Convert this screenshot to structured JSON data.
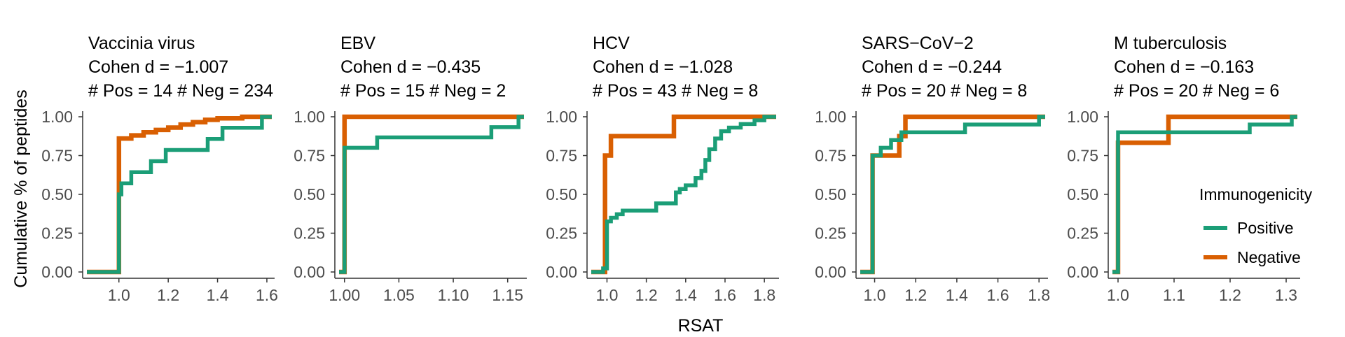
{
  "chart_data": [
    {
      "type": "line",
      "title": "Vaccinia virus",
      "subtitle": [
        "Cohen d = −1.007",
        "# Pos = 14 # Neg = 234"
      ],
      "xlim": [
        0.87,
        1.62
      ],
      "xticks": [
        1.0,
        1.2,
        1.4,
        1.6
      ],
      "xtick_labels": [
        "1.0",
        "1.2",
        "1.4",
        "1.6"
      ],
      "ylim": [
        0,
        1
      ],
      "series": [
        {
          "name": "Positive",
          "x": [
            0.87,
            1.0,
            1.0,
            1.01,
            1.05,
            1.11,
            1.13,
            1.19,
            1.21,
            1.27,
            1.36,
            1.42,
            1.5,
            1.58,
            1.62
          ],
          "y": [
            0.0,
            0.0,
            0.5,
            0.571,
            0.643,
            0.643,
            0.714,
            0.786,
            0.786,
            0.786,
            0.857,
            0.929,
            0.929,
            1.0,
            1.0
          ]
        },
        {
          "name": "Negative",
          "x": [
            0.87,
            1.0,
            1.0,
            1.05,
            1.1,
            1.15,
            1.2,
            1.25,
            1.3,
            1.35,
            1.4,
            1.5,
            1.62
          ],
          "y": [
            0.0,
            0.0,
            0.86,
            0.88,
            0.9,
            0.915,
            0.93,
            0.95,
            0.965,
            0.98,
            0.99,
            1.0,
            1.0
          ]
        }
      ]
    },
    {
      "type": "line",
      "title": "EBV",
      "subtitle": [
        "Cohen d = −0.435",
        "# Pos = 15 # Neg = 2"
      ],
      "xlim": [
        0.995,
        1.165
      ],
      "xticks": [
        1.0,
        1.05,
        1.1,
        1.15
      ],
      "xtick_labels": [
        "1.00",
        "1.05",
        "1.10",
        "1.15"
      ],
      "ylim": [
        0,
        1
      ],
      "series": [
        {
          "name": "Positive",
          "x": [
            0.995,
            1.0,
            1.0,
            1.03,
            1.135,
            1.16,
            1.165
          ],
          "y": [
            0.0,
            0.0,
            0.8,
            0.867,
            0.933,
            1.0,
            1.0
          ]
        },
        {
          "name": "Negative",
          "x": [
            0.995,
            1.0,
            1.0,
            1.165
          ],
          "y": [
            0.0,
            0.0,
            1.0,
            1.0
          ]
        }
      ]
    },
    {
      "type": "line",
      "title": "HCV",
      "subtitle": [
        "Cohen d = −1.028",
        "# Pos = 43 # Neg = 8"
      ],
      "xlim": [
        0.92,
        1.86
      ],
      "xticks": [
        1.0,
        1.2,
        1.4,
        1.6,
        1.8
      ],
      "xtick_labels": [
        "1.0",
        "1.2",
        "1.4",
        "1.6",
        "1.8"
      ],
      "ylim": [
        0,
        1
      ],
      "series": [
        {
          "name": "Positive",
          "x": [
            0.92,
            0.98,
            0.98,
            1.0,
            1.02,
            1.05,
            1.08,
            1.12,
            1.25,
            1.35,
            1.37,
            1.4,
            1.45,
            1.48,
            1.5,
            1.52,
            1.55,
            1.58,
            1.62,
            1.68,
            1.75,
            1.8,
            1.86
          ],
          "y": [
            0.0,
            0.0,
            0.023,
            0.326,
            0.349,
            0.372,
            0.395,
            0.395,
            0.442,
            0.512,
            0.535,
            0.558,
            0.605,
            0.651,
            0.721,
            0.791,
            0.86,
            0.907,
            0.93,
            0.953,
            0.977,
            1.0,
            1.0
          ]
        },
        {
          "name": "Negative",
          "x": [
            0.92,
            0.99,
            0.99,
            1.02,
            1.34,
            1.86
          ],
          "y": [
            0.0,
            0.0,
            0.75,
            0.875,
            1.0,
            1.0
          ]
        }
      ]
    },
    {
      "type": "line",
      "title": "SARS−CoV−2",
      "subtitle": [
        "Cohen d = −0.244",
        "# Pos = 20 # Neg = 8"
      ],
      "xlim": [
        0.93,
        1.83
      ],
      "xticks": [
        1.0,
        1.2,
        1.4,
        1.6,
        1.8
      ],
      "xtick_labels": [
        "1.0",
        "1.2",
        "1.4",
        "1.6",
        "1.8"
      ],
      "ylim": [
        0,
        1
      ],
      "series": [
        {
          "name": "Positive",
          "x": [
            0.93,
            0.99,
            0.99,
            1.03,
            1.08,
            1.13,
            1.2,
            1.44,
            1.8,
            1.83
          ],
          "y": [
            0.0,
            0.0,
            0.75,
            0.8,
            0.85,
            0.9,
            0.9,
            0.95,
            1.0,
            1.0
          ]
        },
        {
          "name": "Negative",
          "x": [
            0.93,
            0.99,
            0.99,
            1.12,
            1.15,
            1.83
          ],
          "y": [
            0.0,
            0.0,
            0.75,
            0.875,
            1.0,
            1.0
          ]
        }
      ]
    },
    {
      "type": "line",
      "title": "M tuberculosis",
      "subtitle": [
        "Cohen d = −0.163",
        "# Pos = 20 # Neg = 6"
      ],
      "xlim": [
        0.99,
        1.32
      ],
      "xticks": [
        1.0,
        1.1,
        1.2,
        1.3
      ],
      "xtick_labels": [
        "1.0",
        "1.1",
        "1.2",
        "1.3"
      ],
      "ylim": [
        0,
        1
      ],
      "series": [
        {
          "name": "Positive",
          "x": [
            0.99,
            1.0,
            1.0,
            1.235,
            1.31,
            1.32
          ],
          "y": [
            0.0,
            0.0,
            0.9,
            0.95,
            1.0,
            1.0
          ]
        },
        {
          "name": "Negative",
          "x": [
            0.99,
            1.0,
            1.0,
            1.09,
            1.32
          ],
          "y": [
            0.0,
            0.0,
            0.833,
            1.0,
            1.0
          ]
        }
      ]
    }
  ],
  "yticks": [
    0,
    0.25,
    0.5,
    0.75,
    1.0
  ],
  "ytick_labels": [
    "0.00",
    "0.25",
    "0.50",
    "0.75",
    "1.00"
  ],
  "ylabel": "Cumulative % of peptides",
  "xlabel": "RSAT",
  "legend": {
    "title": "Immunogenicity",
    "placement": "right",
    "items": [
      {
        "label": "Positive",
        "color": "#1b9e77"
      },
      {
        "label": "Negative",
        "color": "#d95f02"
      }
    ]
  },
  "colors": {
    "Positive": "#1b9e77",
    "Negative": "#d95f02"
  }
}
